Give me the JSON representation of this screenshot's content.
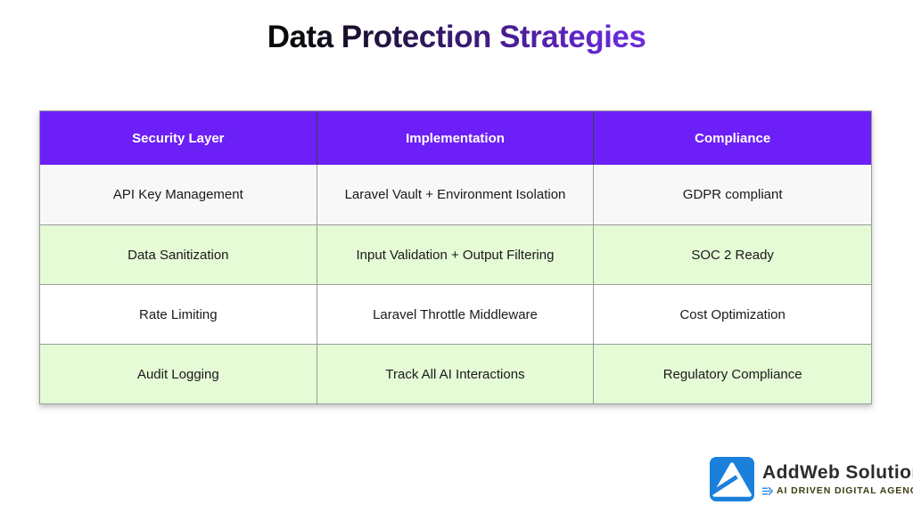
{
  "title": {
    "text": "Data Protection Strategies"
  },
  "chart_data": {
    "type": "table",
    "title": "Data Protection Strategies",
    "columns": [
      "Security Layer",
      "Implementation",
      "Compliance"
    ],
    "rows": [
      [
        "API Key Management",
        "Laravel Vault + Environment Isolation",
        "GDPR compliant"
      ],
      [
        "Data Sanitization",
        "Input Validation + Output Filtering",
        "SOC 2 Ready"
      ],
      [
        "Rate Limiting",
        "Laravel Throttle Middleware",
        "Cost Optimization"
      ],
      [
        "Audit Logging",
        "Track All AI Interactions",
        "Regulatory Compliance"
      ]
    ],
    "layout_hints": {
      "header_background": "#6c1ff7",
      "row_background_pattern": [
        "#f8f8f8",
        "#e4fbd6",
        "#ffffff",
        "#e4fbd6"
      ],
      "grid": true
    }
  },
  "logo": {
    "name": "AddWeb Solution",
    "tagline": "AI DRIVEN DIGITAL AGENCY"
  },
  "colors": {
    "header_purple": "#6c1ff7",
    "title_gradient_start": "#050505",
    "title_gradient_end": "#8843f5",
    "row_green": "#e4fbd6",
    "row_gray": "#f8f8f8",
    "cell_border": "#9b9b9b",
    "logo_blue": "#1b80dc",
    "tagline_olive": "#3c3c12",
    "wind_blue": "#2f8ce3"
  }
}
